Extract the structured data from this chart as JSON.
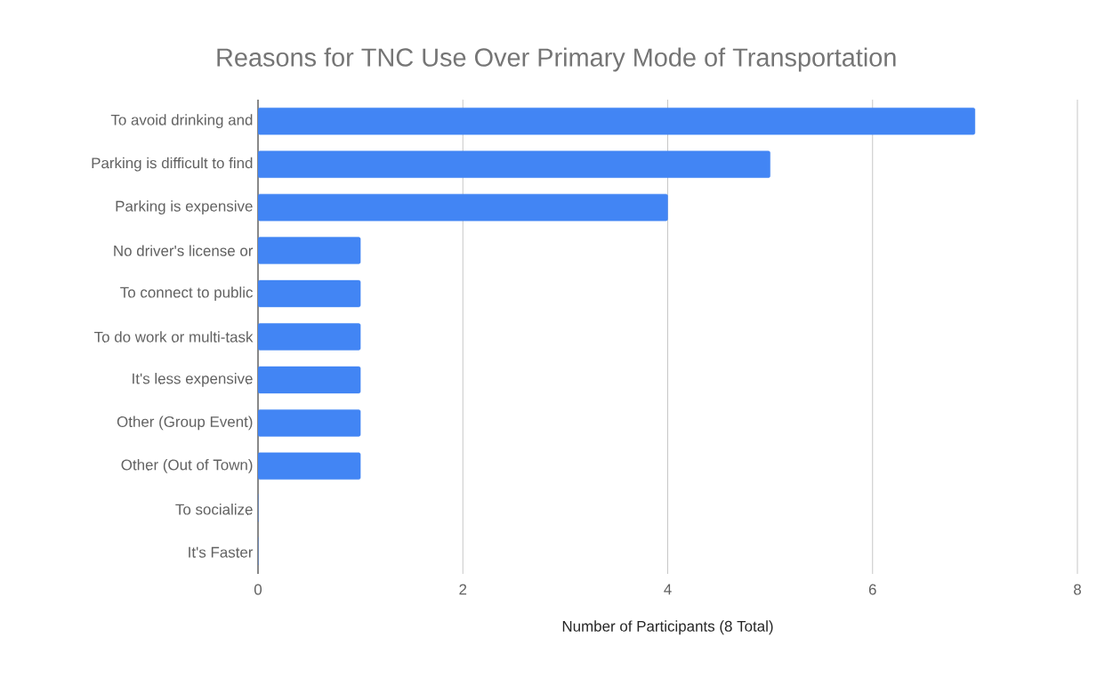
{
  "chart_data": {
    "type": "bar",
    "orientation": "horizontal",
    "title": "Reasons for TNC Use Over Primary Mode of Transportation",
    "xlabel": "Number of Participants (8 Total)",
    "categories": [
      "To avoid drinking and",
      "Parking is difficult to find",
      "Parking is expensive",
      "No driver's license or",
      "To connect to public",
      "To do work or multi-task",
      "It's less expensive",
      "Other (Group Event)",
      "Other (Out of Town)",
      "To socialize",
      "It's Faster"
    ],
    "values": [
      7,
      5,
      4,
      1,
      1,
      1,
      1,
      1,
      1,
      0,
      0
    ],
    "color": "#4285f4",
    "xlim": [
      0,
      8
    ],
    "xticks": [
      0,
      2,
      4,
      6,
      8
    ],
    "grid": "x"
  }
}
